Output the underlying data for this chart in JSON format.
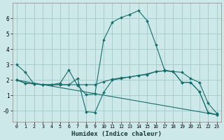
{
  "xlabel": "Humidex (Indice chaleur)",
  "bg_color": "#cce8e8",
  "grid_color": "#aacccc",
  "line_color": "#1a6e6e",
  "xlim": [
    -0.5,
    23.5
  ],
  "ylim": [
    -0.7,
    7.0
  ],
  "yticks": [
    0,
    1,
    2,
    3,
    4,
    5,
    6
  ],
  "ytick_labels": [
    "-0",
    "1",
    "2",
    "3",
    "4",
    "5",
    "6"
  ],
  "lines": [
    {
      "x": [
        0,
        1,
        2,
        3,
        4,
        5,
        6,
        7,
        8,
        9,
        10,
        11,
        12,
        13,
        14,
        15,
        16,
        17,
        18,
        19,
        20,
        21,
        22,
        23
      ],
      "y": [
        3.0,
        2.5,
        1.75,
        1.7,
        1.7,
        1.8,
        2.65,
        1.65,
        1.05,
        1.1,
        4.6,
        5.75,
        6.05,
        6.25,
        6.5,
        5.85,
        4.3,
        2.65,
        2.55,
        1.85,
        1.85,
        1.25,
        -0.1,
        -0.25
      ]
    },
    {
      "x": [
        0,
        1,
        2,
        3,
        4,
        5,
        6,
        7,
        8,
        9,
        10,
        11,
        12,
        13,
        14,
        15,
        16,
        17,
        18,
        19,
        20,
        21,
        22,
        23
      ],
      "y": [
        2.0,
        1.8,
        1.75,
        1.7,
        1.7,
        1.7,
        1.7,
        1.7,
        1.7,
        1.7,
        1.9,
        2.05,
        2.15,
        2.2,
        2.3,
        2.35,
        2.55,
        2.6,
        2.55,
        2.5,
        2.1,
        1.85,
        0.5,
        -0.15
      ]
    },
    {
      "x": [
        0,
        1,
        2,
        3,
        4,
        5,
        6,
        7,
        8,
        9,
        10,
        11,
        12,
        13,
        14,
        15,
        16,
        17,
        18,
        19,
        20,
        21,
        22,
        23
      ],
      "y": [
        2.0,
        1.8,
        1.75,
        1.7,
        1.7,
        1.7,
        1.7,
        2.1,
        -0.05,
        -0.1,
        1.2,
        2.0,
        2.1,
        2.2,
        2.3,
        2.4,
        2.55,
        2.6,
        2.55,
        1.85,
        1.85,
        1.25,
        -0.1,
        -0.25
      ]
    },
    {
      "x": [
        0,
        23
      ],
      "y": [
        2.0,
        -0.25
      ]
    }
  ]
}
